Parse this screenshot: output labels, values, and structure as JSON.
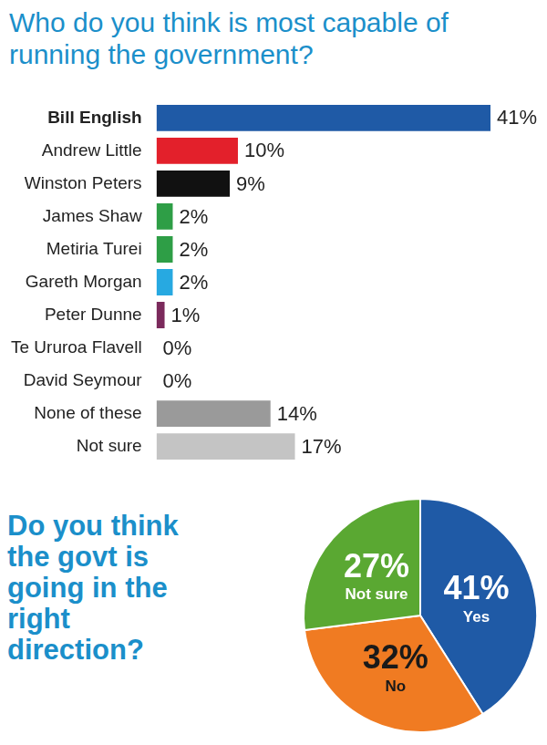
{
  "chart_data": [
    {
      "type": "bar",
      "title": "Who do you think is most capable of running the government?",
      "orientation": "horizontal",
      "categories": [
        "Bill English",
        "Andrew Little",
        "Winston Peters",
        "James Shaw",
        "Metiria Turei",
        "Gareth Morgan",
        "Peter Dunne",
        "Te Ururoa Flavell",
        "David Seymour",
        "None of these",
        "Not sure"
      ],
      "values": [
        41,
        10,
        9,
        2,
        2,
        2,
        1,
        0,
        0,
        14,
        17
      ],
      "value_labels": [
        "41%",
        "10%",
        "9%",
        "2%",
        "2%",
        "2%",
        "1%",
        "0%",
        "0%",
        "14%",
        "17%"
      ],
      "colors": [
        "#1f5aa6",
        "#e3202b",
        "#111111",
        "#2e9e46",
        "#2e9e46",
        "#27a9e1",
        "#7b2a5c",
        "#999999",
        "#999999",
        "#9a9a9a",
        "#c4c4c4"
      ],
      "data_labels": true,
      "tick_labels": "y",
      "grid": false
    },
    {
      "type": "pie",
      "title": "Do you think the govt is going in the right direction?",
      "categories": [
        "Yes",
        "No",
        "Not sure"
      ],
      "values": [
        41,
        32,
        27
      ],
      "value_labels": [
        "41%",
        "32%",
        "27%"
      ],
      "colors": [
        "#1f5aa6",
        "#f07b22",
        "#5aa832"
      ],
      "data_labels": true
    }
  ]
}
